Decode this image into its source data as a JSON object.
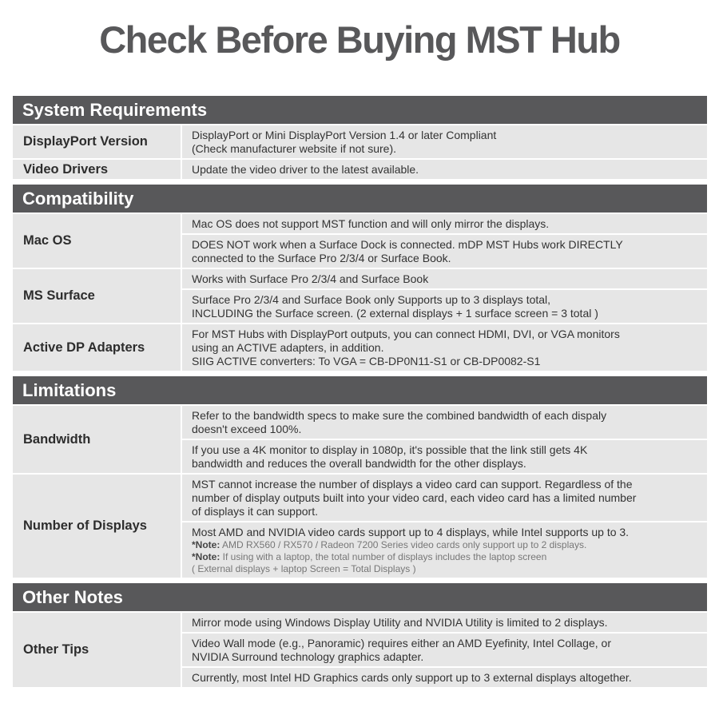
{
  "title": "Check Before Buying MST Hub",
  "sections": [
    {
      "heading": "System Requirements",
      "rows": [
        {
          "label": "DisplayPort Version",
          "cells": [
            {
              "text": "DisplayPort or Mini DisplayPort Version 1.4 or later Compliant\n(Check manufacturer website if not sure)."
            }
          ]
        },
        {
          "label": "Video Drivers",
          "cells": [
            {
              "text": "Update the video driver to the latest available."
            }
          ]
        }
      ]
    },
    {
      "heading": "Compatibility",
      "rows": [
        {
          "label": "Mac OS",
          "cells": [
            {
              "text": "Mac OS does not support MST function and will only mirror the displays."
            },
            {
              "text": "DOES NOT work when a Surface Dock is connected. mDP MST Hubs work DIRECTLY\nconnected to the Surface Pro 2/3/4 or Surface Book."
            }
          ]
        },
        {
          "label": "MS Surface",
          "cells": [
            {
              "text": "Works with Surface Pro 2/3/4 and Surface Book"
            },
            {
              "text": "Surface Pro 2/3/4 and Surface Book only Supports up to 3 displays total,\nINCLUDING the Surface screen. (2 external displays + 1 surface screen = 3 total )"
            }
          ]
        },
        {
          "label": "Active DP Adapters",
          "cells": [
            {
              "text": "For MST Hubs with DisplayPort outputs, you can connect HDMI, DVI, or VGA monitors\nusing an ACTIVE adapters, in addition.\nSIIG ACTIVE converters: To VGA = CB-DP0N11-S1 or CB-DP0082-S1"
            }
          ]
        }
      ]
    },
    {
      "heading": "Limitations",
      "rows": [
        {
          "label": "Bandwidth",
          "cells": [
            {
              "text": "Refer to the bandwidth specs to make sure the combined bandwidth of each dispaly\ndoesn't exceed 100%."
            },
            {
              "text": "If you use a 4K monitor to display in 1080p, it's possible that the link still gets 4K\nbandwidth and reduces the overall bandwidth for the other displays."
            }
          ]
        },
        {
          "label": "Number of Displays",
          "cells": [
            {
              "text": "MST cannot increase the number of displays a video card can support. Regardless of the\nnumber of display outputs built into your video card, each video card has a limited  number\nof displays it can support."
            },
            {
              "text": "Most AMD and NVIDIA video cards support up to 4 displays, while Intel supports up to 3.",
              "notes": [
                {
                  "label": "*Note:",
                  "text": " AMD RX560 / RX570 / Radeon 7200 Series video cards only support up to 2 displays."
                },
                {
                  "label": "*Note:",
                  "text": " If using with a laptop, the total number of displays includes the laptop screen\n ( External displays + laptop Screen = Total Displays )"
                }
              ]
            }
          ]
        }
      ]
    },
    {
      "heading": "Other Notes",
      "rows": [
        {
          "label": "Other Tips",
          "cells": [
            {
              "text": "Mirror mode using Windows Display Utility and NVIDIA Utility is limited to 2 displays."
            },
            {
              "text": "Video Wall mode (e.g., Panoramic) requires either an AMD Eyefinity, Intel Collage, or\nNVIDIA Surround technology graphics adapter."
            },
            {
              "text": "Currently, most Intel HD Graphics cards only support up to 3 external displays altogether."
            }
          ]
        }
      ]
    }
  ]
}
